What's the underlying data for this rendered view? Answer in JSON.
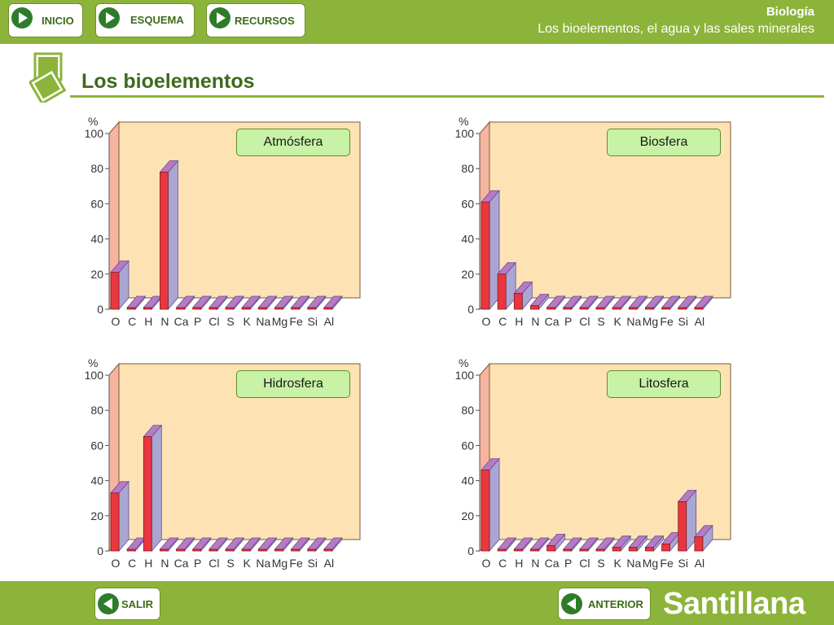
{
  "nav": {
    "inicio": "INICIO",
    "esquema": "ESQUEMA",
    "recursos": "RECURSOS"
  },
  "header": {
    "subject": "Biología",
    "topic": "Los bioelementos, el agua y las sales minerales"
  },
  "page": {
    "title": "Los bioelementos"
  },
  "footer": {
    "salir": "SALIR",
    "anterior": "ANTERIOR",
    "brand": "Santillana"
  },
  "colors": {
    "green_bar": "#8db43a",
    "dark_green": "#2f7b2b",
    "plot_bg": "#fde3b4",
    "side_wall": "#f7b49f",
    "bar_front": "#e8373f",
    "bar_side": "#a9a6d4",
    "bar_top": "#b87ac4",
    "tag_bg": "#c8f2a6"
  },
  "icons": {
    "nav": "play-right-icon",
    "salir": "play-left-icon",
    "anterior": "play-left-icon",
    "title": "stacked-squares-icon"
  },
  "chart_data": [
    {
      "type": "bar",
      "title": "Atmósfera",
      "ylabel": "%",
      "ylim": [
        0,
        100
      ],
      "yticks": [
        "0",
        "20",
        "40",
        "60",
        "80",
        "100"
      ],
      "categories": [
        "O",
        "C",
        "H",
        "N",
        "Ca",
        "P",
        "Cl",
        "S",
        "K",
        "Na",
        "Mg",
        "Fe",
        "Si",
        "Al"
      ],
      "values": [
        21,
        0,
        0,
        78,
        0,
        0,
        0,
        0,
        0,
        0,
        0,
        0,
        0,
        0
      ]
    },
    {
      "type": "bar",
      "title": "Biosfera",
      "ylabel": "%",
      "ylim": [
        0,
        100
      ],
      "yticks": [
        "0",
        "20",
        "40",
        "60",
        "80",
        "100"
      ],
      "categories": [
        "O",
        "C",
        "H",
        "N",
        "Ca",
        "P",
        "Cl",
        "S",
        "K",
        "Na",
        "Mg",
        "Fe",
        "Si",
        "Al"
      ],
      "values": [
        61,
        20,
        9,
        2,
        1,
        0,
        0,
        0,
        0,
        0,
        0,
        0,
        0,
        0
      ]
    },
    {
      "type": "bar",
      "title": "Hidrosfera",
      "ylabel": "%",
      "ylim": [
        0,
        100
      ],
      "yticks": [
        "0",
        "20",
        "40",
        "60",
        "80",
        "100"
      ],
      "categories": [
        "O",
        "C",
        "H",
        "N",
        "Ca",
        "P",
        "Cl",
        "S",
        "K",
        "Na",
        "Mg",
        "Fe",
        "Si",
        "Al"
      ],
      "values": [
        33,
        0,
        65,
        0,
        0,
        0,
        0,
        0,
        0,
        0,
        0,
        0,
        0,
        0
      ]
    },
    {
      "type": "bar",
      "title": "Litosfera",
      "ylabel": "%",
      "ylim": [
        0,
        100
      ],
      "yticks": [
        "0",
        "20",
        "40",
        "60",
        "80",
        "100"
      ],
      "categories": [
        "O",
        "C",
        "H",
        "N",
        "Ca",
        "P",
        "Cl",
        "S",
        "K",
        "Na",
        "Mg",
        "Fe",
        "Si",
        "Al"
      ],
      "values": [
        46,
        0,
        0,
        0,
        3,
        0,
        0,
        0,
        2,
        2,
        2,
        4,
        28,
        8
      ]
    }
  ]
}
